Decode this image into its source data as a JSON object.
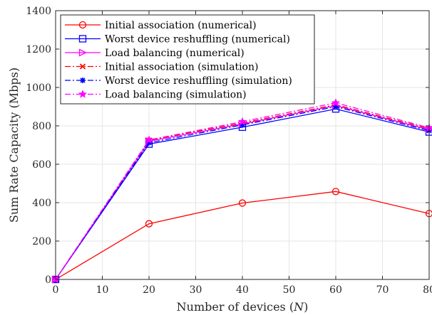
{
  "chart_data": {
    "type": "line",
    "title": "",
    "xlabel": "Number of devices (N)",
    "xlabel_parts": [
      "Number of devices (",
      "N",
      ")"
    ],
    "ylabel": "Sum Rate Capacity (Mbps)",
    "xlim": [
      0,
      80
    ],
    "ylim": [
      0,
      1400
    ],
    "xticks": [
      0,
      10,
      20,
      30,
      40,
      50,
      60,
      70,
      80
    ],
    "xtick_labels": [
      "0",
      "10",
      "20",
      "30",
      "40",
      "50",
      "60",
      "70",
      "80"
    ],
    "yticks": [
      0,
      200,
      400,
      600,
      800,
      1000,
      1200,
      1400
    ],
    "ytick_labels": [
      "0",
      "200",
      "400",
      "600",
      "800",
      "1000",
      "1200",
      "1400"
    ],
    "grid": true,
    "legend_position": "top-left",
    "x": [
      0,
      20,
      40,
      60,
      80
    ],
    "series": [
      {
        "name": "Initial association (numerical)",
        "values": [
          0,
          290,
          398,
          458,
          343
        ],
        "color": "#ff0000",
        "dash": "solid",
        "marker": "circle"
      },
      {
        "name": "Worst device reshuffling (numerical)",
        "values": [
          0,
          705,
          793,
          888,
          768
        ],
        "color": "#0000ff",
        "dash": "solid",
        "marker": "square"
      },
      {
        "name": "Load balancing (numerical)",
        "values": [
          0,
          720,
          810,
          905,
          780
        ],
        "color": "#ff00ff",
        "dash": "solid",
        "marker": "triangle-right"
      },
      {
        "name": "Initial association (simulation)",
        "values": [
          0,
          725,
          815,
          910,
          785
        ],
        "color": "#ff0000",
        "dash": "dashdot",
        "marker": "x"
      },
      {
        "name": "Worst device reshuffling (simulation)",
        "values": [
          0,
          712,
          805,
          900,
          775
        ],
        "color": "#0000ff",
        "dash": "dashdot",
        "marker": "asterisk"
      },
      {
        "name": "Load balancing (simulation)",
        "values": [
          0,
          727,
          822,
          920,
          790
        ],
        "color": "#ff00ff",
        "dash": "dashdot",
        "marker": "star"
      }
    ]
  }
}
